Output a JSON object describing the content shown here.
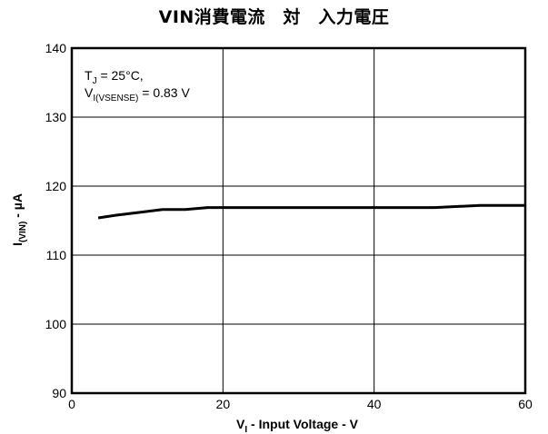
{
  "chart_data": {
    "type": "line",
    "title": "VIN消費電流　対　入力電圧",
    "xlabel": {
      "base": "V",
      "sub": "I",
      "rest": " - Input Voltage - V"
    },
    "ylabel": {
      "base": "I",
      "sub": "(VIN)",
      "rest": " - µA"
    },
    "xlim": [
      0,
      60
    ],
    "ylim": [
      90,
      140
    ],
    "xticks": [
      0,
      20,
      40,
      60
    ],
    "yticks": [
      90,
      100,
      110,
      120,
      130,
      140
    ],
    "grid": true,
    "annotation": {
      "line1": {
        "base": "T",
        "sub": "J",
        "rest": " = 25°C,"
      },
      "line2": {
        "base": "V",
        "sub": "I(VSENSE)",
        "rest": " = 0.83 V"
      }
    },
    "series": [
      {
        "x": [
          3.5,
          6,
          9,
          12,
          15,
          18,
          20,
          25,
          30,
          35,
          40,
          45,
          48,
          54,
          60
        ],
        "values": [
          115.4,
          115.8,
          116.2,
          116.6,
          116.6,
          116.9,
          116.9,
          116.9,
          116.9,
          116.9,
          116.9,
          116.9,
          116.9,
          117.2,
          117.2
        ]
      }
    ]
  }
}
